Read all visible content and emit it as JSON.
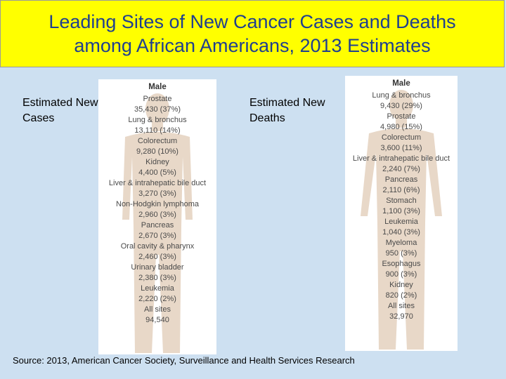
{
  "title": {
    "line1": "Leading Sites of New Cancer Cases and Deaths",
    "line2": "among African Americans, 2013 Estimates"
  },
  "cases": {
    "caption_line1": "Estimated New",
    "caption_line2": "Cases",
    "sex": "Male",
    "entries": [
      {
        "site": "Prostate",
        "value": "35,430 (37%)"
      },
      {
        "site": "Lung & bronchus",
        "value": "13,110 (14%)"
      },
      {
        "site": "Colorectum",
        "value": "9,280 (10%)"
      },
      {
        "site": "Kidney",
        "value": "4,400 (5%)"
      },
      {
        "site": "Liver & intrahepatic bile duct",
        "value": "3,270 (3%)"
      },
      {
        "site": "Non-Hodgkin lymphoma",
        "value": "2,960 (3%)"
      },
      {
        "site": "Pancreas",
        "value": "2,670 (3%)"
      },
      {
        "site": "Oral cavity & pharynx",
        "value": "2,460 (3%)"
      },
      {
        "site": "Urinary bladder",
        "value": "2,380 (3%)"
      },
      {
        "site": "Leukemia",
        "value": "2,220 (2%)"
      },
      {
        "site": "All sites",
        "value": "94,540"
      }
    ]
  },
  "deaths": {
    "caption_line1": "Estimated New",
    "caption_line2": "Deaths",
    "sex": "Male",
    "entries": [
      {
        "site": "Lung & bronchus",
        "value": "9,430 (29%)"
      },
      {
        "site": "Prostate",
        "value": "4,980 (15%)"
      },
      {
        "site": "Colorectum",
        "value": "3,600 (11%)"
      },
      {
        "site": "Liver & intrahepatic bile duct",
        "value": "2,240 (7%)"
      },
      {
        "site": "Pancreas",
        "value": "2,110 (6%)"
      },
      {
        "site": "Stomach",
        "value": "1,100 (3%)"
      },
      {
        "site": "Leukemia",
        "value": "1,040 (3%)"
      },
      {
        "site": "Myeloma",
        "value": "950 (3%)"
      },
      {
        "site": "Esophagus",
        "value": "900 (3%)"
      },
      {
        "site": "Kidney",
        "value": "820 (2%)"
      },
      {
        "site": "All sites",
        "value": "32,970"
      }
    ]
  },
  "source": "Source: 2013, American Cancer Society, Surveillance and Health Services Research",
  "colors": {
    "title_bg": "#ffff00",
    "title_text": "#1f3f8f",
    "slide_bg": "#cde0f1",
    "silhouette": "#e8d8c8"
  }
}
